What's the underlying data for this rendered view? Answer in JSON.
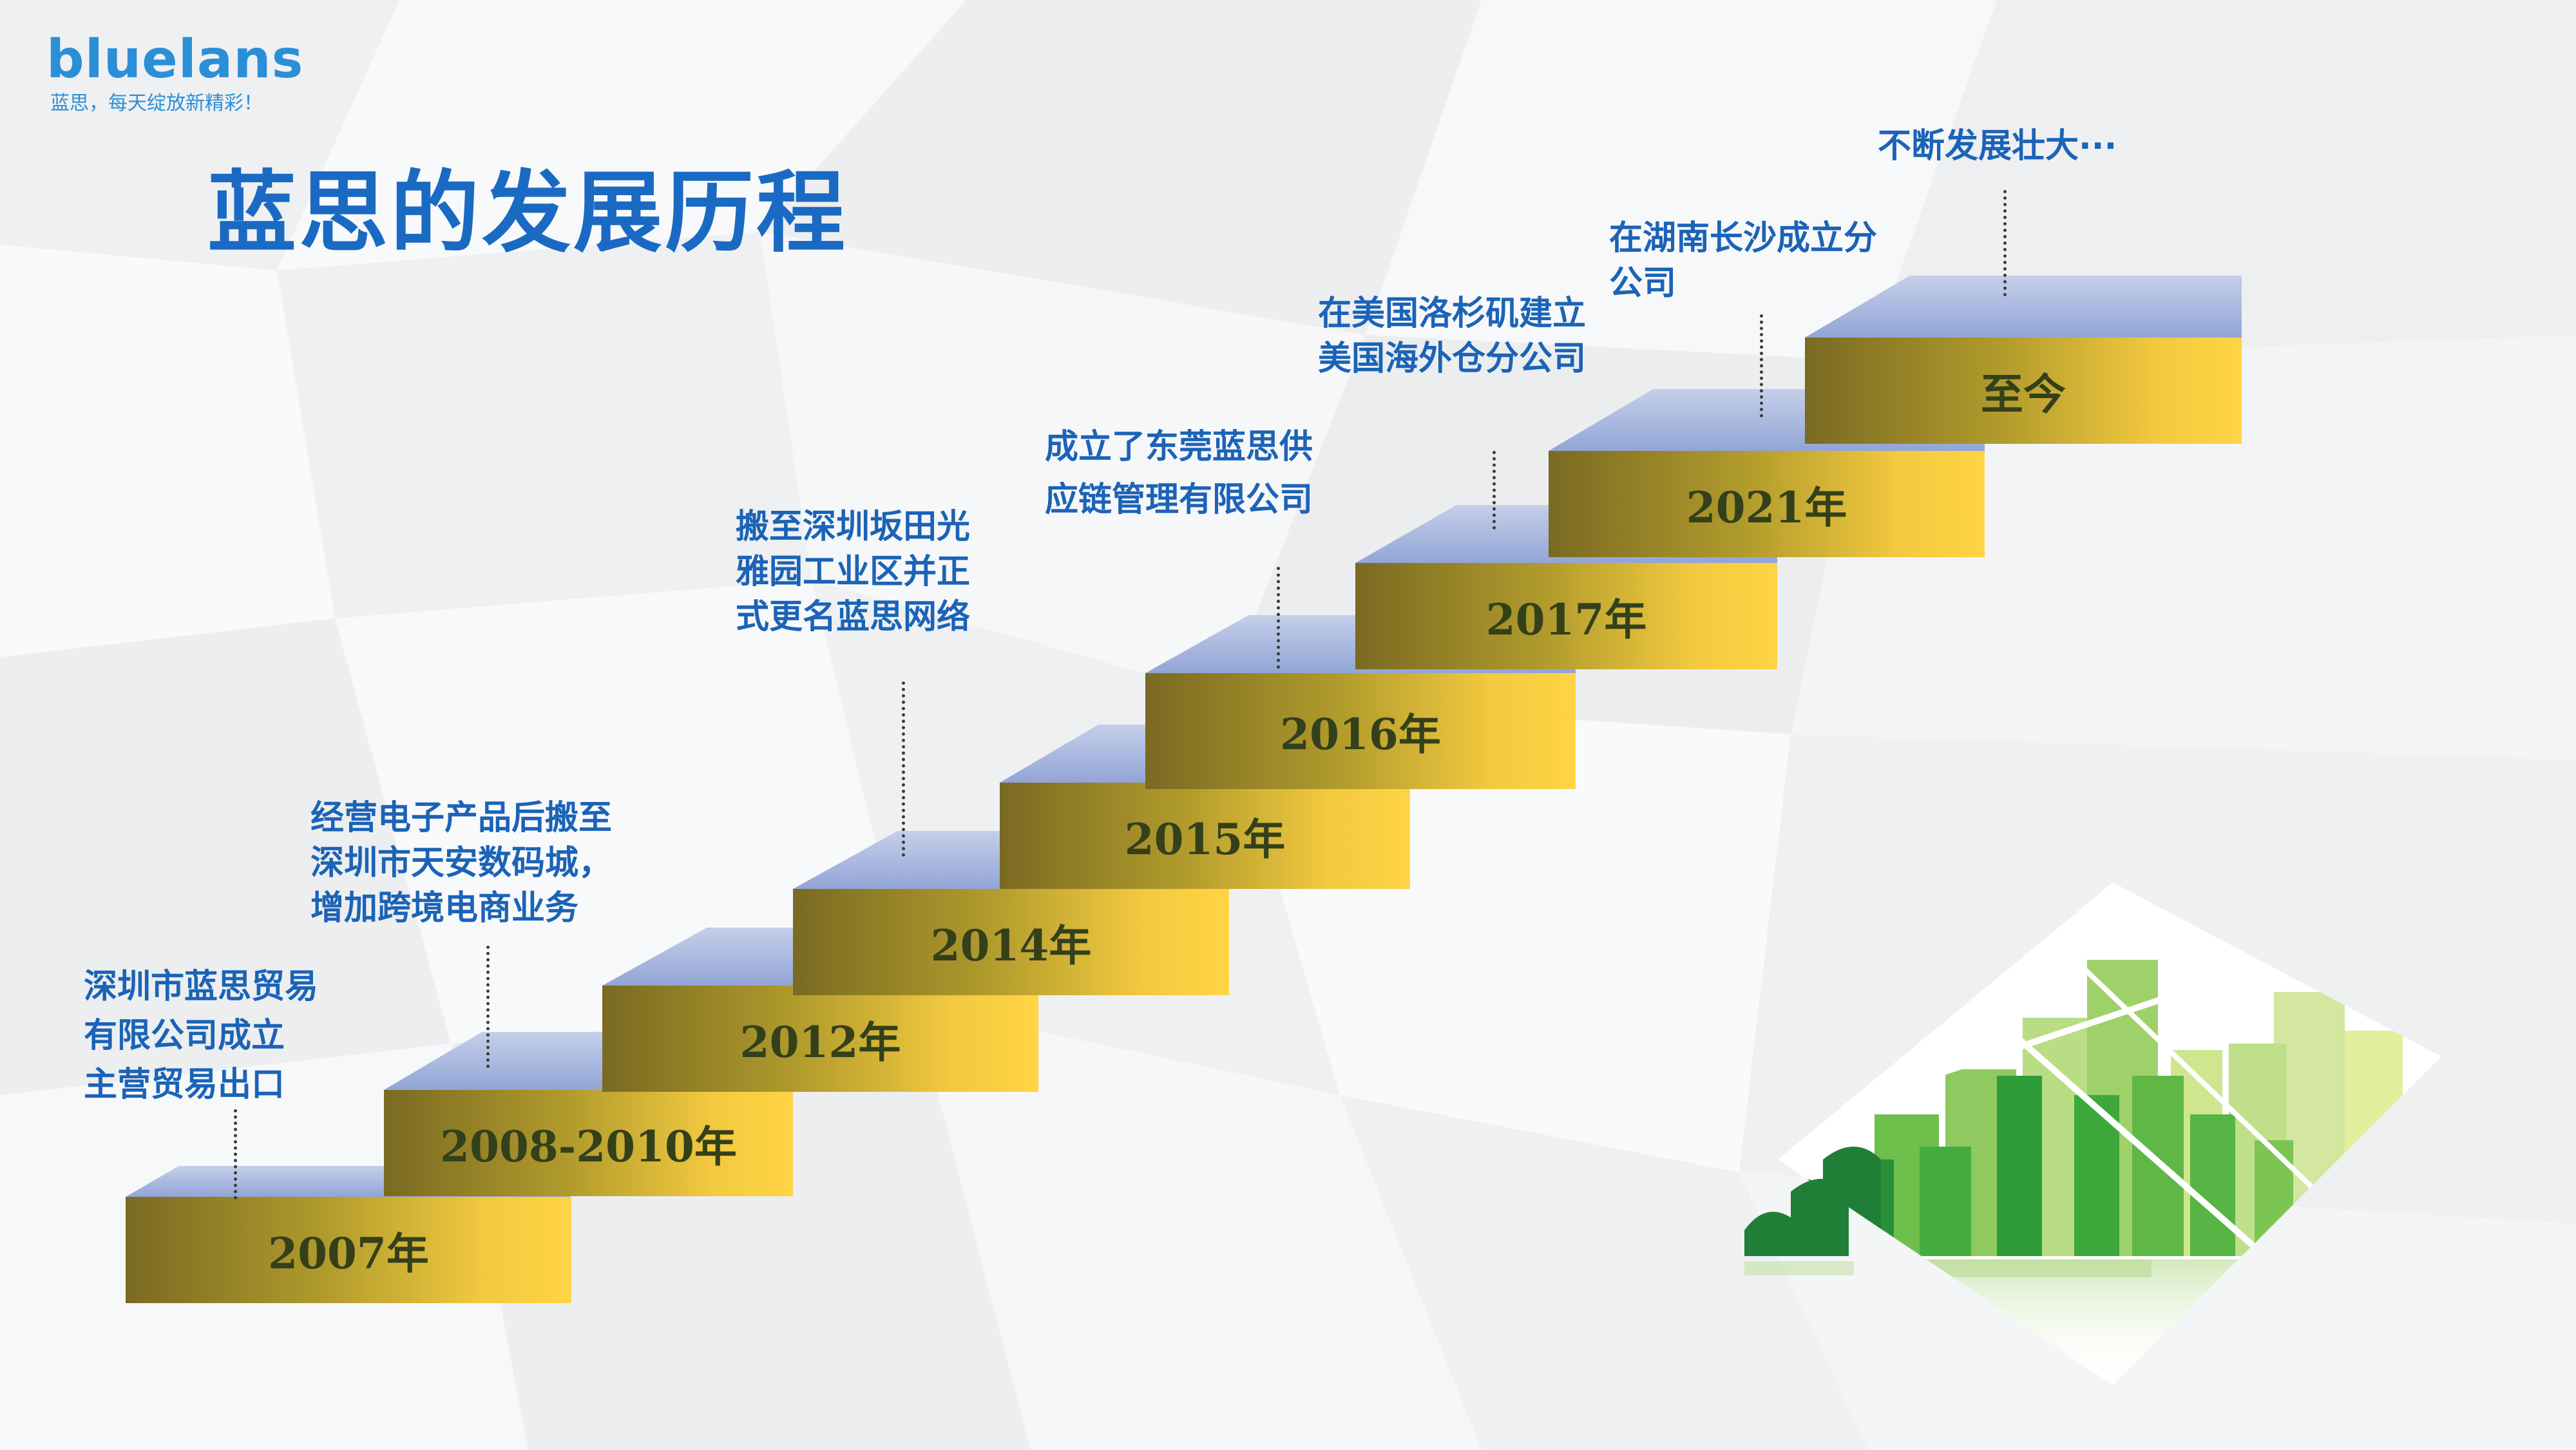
{
  "brand": {
    "logo_text": "bluelans",
    "slogan": "蓝思，每天绽放新精彩！"
  },
  "title": "蓝思的发展历程",
  "timeline": [
    {
      "year": "2007年",
      "event_lines": [
        "深圳市蓝思贸易",
        "有限公司成立",
        "主营贸易出口"
      ]
    },
    {
      "year": "2008-2010年",
      "event_lines": [
        "经营电子产品后搬至",
        "深圳市天安数码城，",
        "增加跨境电商业务"
      ]
    },
    {
      "year": "2012年",
      "event_lines": []
    },
    {
      "year": "2014年",
      "event_lines": [
        "搬至深圳坂田光",
        "雅园工业区并正",
        "式更名蓝思网络"
      ]
    },
    {
      "year": "2015年",
      "event_lines": []
    },
    {
      "year": "2016年",
      "event_lines": [
        "成立了东莞蓝思供",
        "应链管理有限公司"
      ]
    },
    {
      "year": "2017年",
      "event_lines": [
        "在美国洛杉矶建立",
        "美国海外仓分公司"
      ]
    },
    {
      "year": "2021年",
      "event_lines": [
        "在湖南长沙成立分",
        "公司"
      ]
    },
    {
      "year": "至今",
      "event_lines": [
        "不断发展壮大···"
      ]
    }
  ],
  "colors": {
    "title_blue": "#1a6ac4",
    "logo_blue": "#2a8fd6",
    "event_blue": "#1b63b7",
    "step_gold": "#f2c93f",
    "step_olive": "#7a6a22",
    "step_top_blue": "#92a5d6",
    "year_text": "#33401a"
  }
}
